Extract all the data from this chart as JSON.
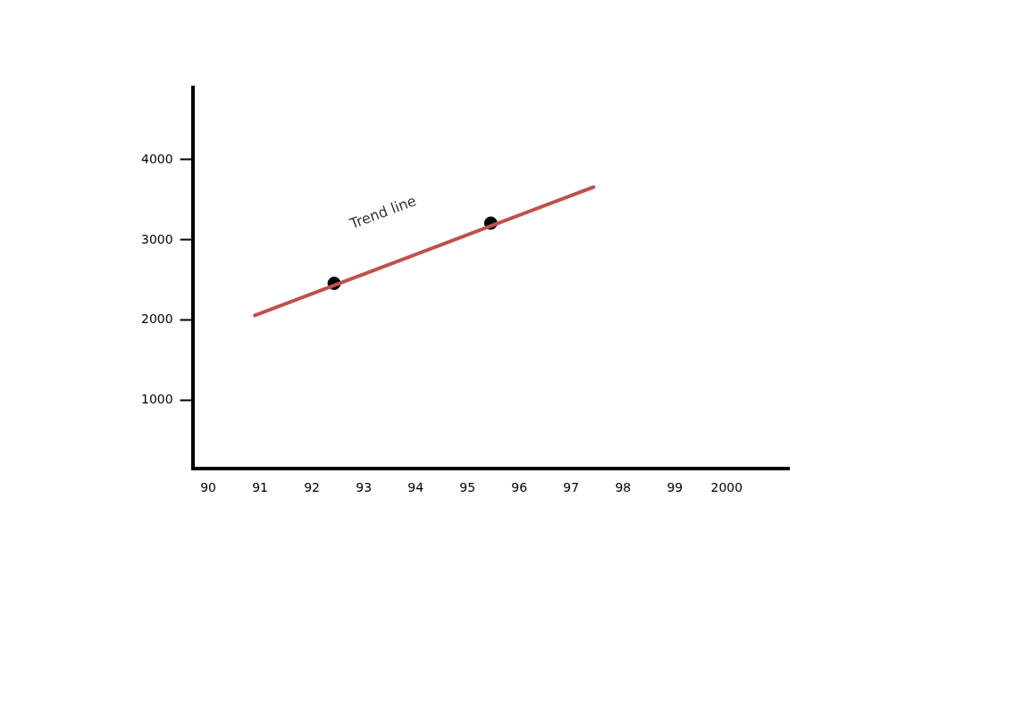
{
  "chart_data": {
    "type": "line",
    "xlim": [
      1989.7,
      2001.2
    ],
    "ylim": [
      150,
      4900
    ],
    "xticks": [
      {
        "value": 1990,
        "label": "90"
      },
      {
        "value": 1991,
        "label": "91"
      },
      {
        "value": 1992,
        "label": "92"
      },
      {
        "value": 1993,
        "label": "93"
      },
      {
        "value": 1994,
        "label": "94"
      },
      {
        "value": 1995,
        "label": "95"
      },
      {
        "value": 1996,
        "label": "96"
      },
      {
        "value": 1997,
        "label": "97"
      },
      {
        "value": 1998,
        "label": "98"
      },
      {
        "value": 1999,
        "label": "99"
      },
      2000
    ],
    "yticks": [
      1000,
      2000,
      3000,
      4000
    ],
    "grid": false,
    "legend": false,
    "series": [
      {
        "color": "#c0504d",
        "x": [
          1990.9,
          1997.43
        ],
        "values": [
          2060,
          3660
        ],
        "marker": "none"
      },
      {
        "type": "scatter",
        "color": "#000000",
        "x": [
          1992.43,
          1995.45
        ],
        "values": [
          2460,
          3210
        ],
        "marker": "circle"
      }
    ],
    "annotations": [
      "Trend line"
    ]
  }
}
